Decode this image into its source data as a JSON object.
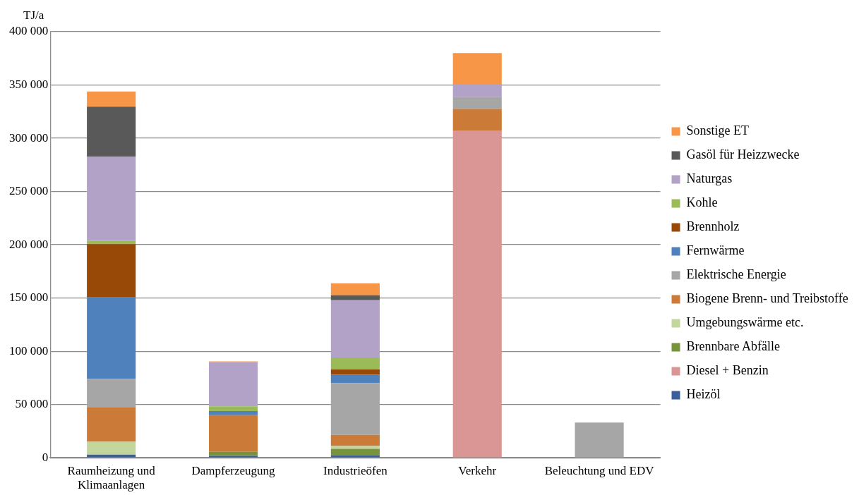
{
  "chart_data": {
    "type": "bar",
    "stacked": true,
    "ylabel": "TJ/a",
    "categories": [
      "Raumheizung und Klimaanlagen",
      "Dampferzeugung",
      "Industrieöfen",
      "Verkehr",
      "Beleuchtung und EDV"
    ],
    "ylim": [
      0,
      400000
    ],
    "yticks": [
      {
        "value": 0,
        "label": "0"
      },
      {
        "value": 50000,
        "label": "50 000"
      },
      {
        "value": 100000,
        "label": "100 000"
      },
      {
        "value": 150000,
        "label": "150 000"
      },
      {
        "value": 200000,
        "label": "200 000"
      },
      {
        "value": 250000,
        "label": "250 000"
      },
      {
        "value": 300000,
        "label": "300 000"
      },
      {
        "value": 350000,
        "label": "350 000"
      },
      {
        "value": 400000,
        "label": "400 000"
      }
    ],
    "grid": "y",
    "legend": "right",
    "series": [
      {
        "name": "Heizöl",
        "color": "#3a5f9a",
        "values": [
          3000,
          1800,
          2500,
          0,
          0
        ]
      },
      {
        "name": "Diesel + Benzin",
        "color": "#d99694",
        "values": [
          0,
          0,
          0,
          306800,
          0
        ]
      },
      {
        "name": "Brennbare Abfälle",
        "color": "#77933c",
        "values": [
          0,
          3800,
          5900,
          0,
          0
        ]
      },
      {
        "name": "Umgebungswärme etc.",
        "color": "#c3d69b",
        "values": [
          12000,
          0,
          2600,
          0,
          0
        ]
      },
      {
        "name": "Biogene Brenn- und Treibstoffe",
        "color": "#cc7a37",
        "values": [
          32700,
          34500,
          10500,
          20700,
          0
        ]
      },
      {
        "name": "Elektrische Energie",
        "color": "#a6a6a6",
        "values": [
          26400,
          null,
          48400,
          11400,
          33000
        ]
      },
      {
        "name": "Fernwärme",
        "color": "#4f81bd",
        "values": [
          76400,
          3700,
          8000,
          0,
          0
        ]
      },
      {
        "name": "Brennholz",
        "color": "#984807",
        "values": [
          50000,
          0,
          5000,
          0,
          0
        ]
      },
      {
        "name": "Kohle",
        "color": "#9bbb59",
        "values": [
          3000,
          4500,
          11200,
          0,
          0
        ]
      },
      {
        "name": "Naturgas",
        "color": "#b3a2c7",
        "values": [
          79100,
          41500,
          53800,
          11400,
          0
        ]
      },
      {
        "name": "Gasöl für Heizzwecke",
        "color": "#595959",
        "values": [
          47000,
          0,
          4600,
          0,
          0
        ]
      },
      {
        "name": "Sonstige ET",
        "color": "#f79646",
        "values": [
          14300,
          700,
          11400,
          29600,
          0
        ]
      }
    ]
  }
}
